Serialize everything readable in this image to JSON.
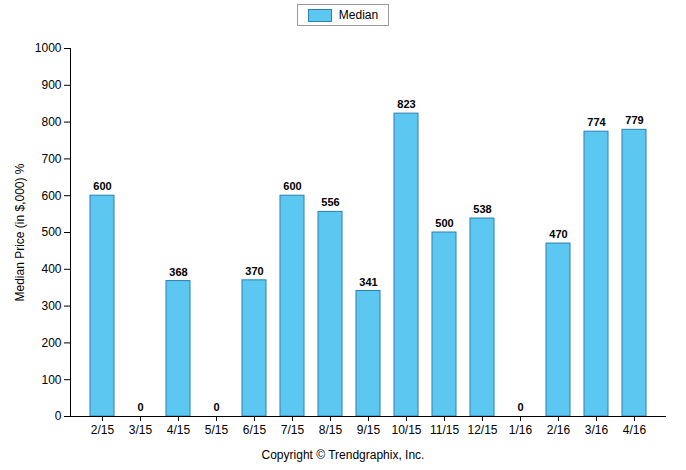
{
  "chart_data": {
    "type": "bar",
    "categories": [
      "2/15",
      "3/15",
      "4/15",
      "5/15",
      "6/15",
      "7/15",
      "8/15",
      "9/15",
      "10/15",
      "11/15",
      "12/15",
      "1/16",
      "2/16",
      "3/16",
      "4/16"
    ],
    "series": [
      {
        "name": "Median",
        "color": "#5cc8f2",
        "values": [
          600,
          0,
          368,
          0,
          370,
          600,
          556,
          341,
          823,
          500,
          538,
          0,
          470,
          774,
          779
        ]
      }
    ],
    "y_label": "Median Price (in $,000) %",
    "caption": "Copyright © Trendgraphix, Inc.",
    "ylim": [
      0,
      1000
    ],
    "yticks": [
      0,
      100,
      200,
      300,
      400,
      500,
      600,
      700,
      800,
      900,
      1000
    ],
    "grid": false,
    "legend": "top",
    "data_labels": true
  }
}
